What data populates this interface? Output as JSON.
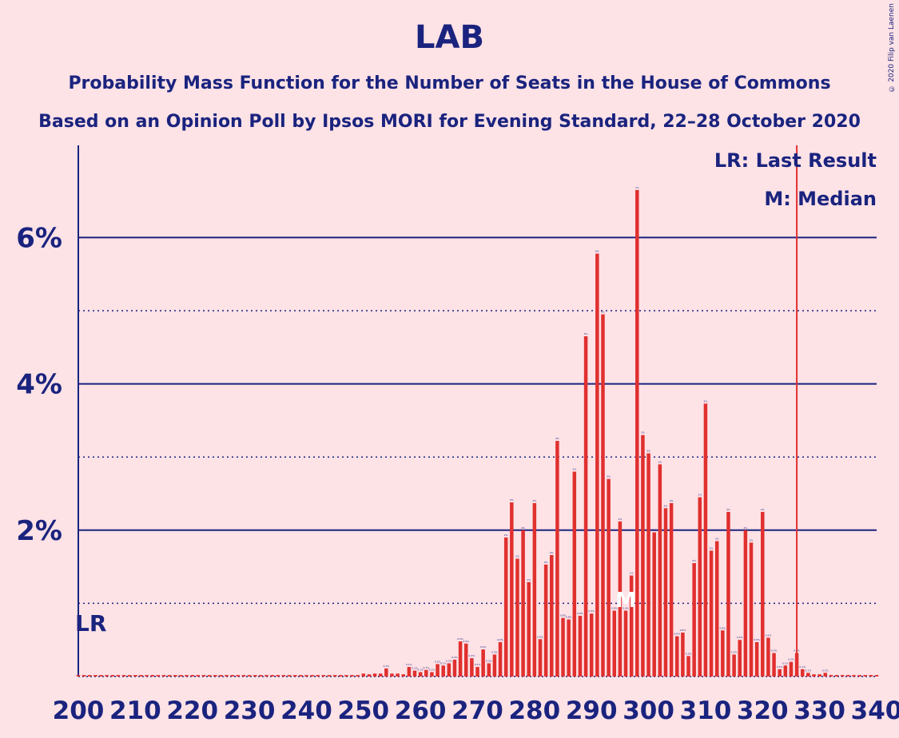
{
  "chart_data": {
    "type": "bar",
    "title": "LAB",
    "subtitle": "Probability Mass Function for the Number of Seats in the House of Commons",
    "subtitle2": "Based on an Opinion Poll by Ipsos MORI for Evening Standard, 22–28 October 2020",
    "copyright": "© 2020 Filip van Laenen",
    "xlim": [
      200,
      340
    ],
    "ylim": [
      0,
      7.2
    ],
    "xticks": [
      200,
      210,
      220,
      230,
      240,
      250,
      260,
      270,
      280,
      290,
      300,
      310,
      320,
      330,
      340
    ],
    "yticks_major": [
      2,
      4,
      6
    ],
    "yticks_minor": [
      1,
      3,
      5
    ],
    "ytick_labels": [
      "2%",
      "4%",
      "6%"
    ],
    "legend": [
      "LR: Last Result",
      "M: Median"
    ],
    "last_result": 326,
    "last_result_label": "LR",
    "median": 296,
    "median_label": "M",
    "first_seat": 200,
    "values": [
      0.02,
      0.02,
      0.02,
      0.02,
      0.02,
      0.02,
      0.02,
      0.02,
      0.02,
      0.02,
      0.02,
      0.02,
      0.02,
      0.02,
      0.02,
      0.02,
      0.02,
      0.02,
      0.02,
      0.02,
      0.02,
      0.02,
      0.02,
      0.02,
      0.02,
      0.02,
      0.02,
      0.02,
      0.02,
      0.02,
      0.02,
      0.02,
      0.02,
      0.02,
      0.02,
      0.02,
      0.02,
      0.02,
      0.02,
      0.02,
      0.02,
      0.02,
      0.02,
      0.02,
      0.02,
      0.02,
      0.02,
      0.02,
      0.02,
      0.02,
      0.04,
      0.03,
      0.04,
      0.04,
      0.11,
      0.04,
      0.04,
      0.03,
      0.13,
      0.08,
      0.06,
      0.09,
      0.06,
      0.17,
      0.15,
      0.18,
      0.23,
      0.48,
      0.45,
      0.25,
      0.13,
      0.37,
      0.18,
      0.3,
      0.47,
      1.9,
      2.38,
      1.61,
      2.0,
      1.29,
      2.37,
      0.51,
      1.53,
      1.66,
      3.22,
      0.8,
      0.78,
      2.8,
      0.83,
      4.65,
      0.86,
      5.78,
      4.95,
      2.7,
      0.9,
      2.12,
      0.9,
      1.38,
      6.65,
      3.3,
      3.05,
      1.97,
      2.9,
      2.3,
      2.37,
      0.55,
      0.6,
      0.28,
      1.55,
      2.45,
      3.73,
      1.72,
      1.85,
      0.63,
      2.25,
      0.3,
      0.5,
      2.0,
      1.83,
      0.47,
      2.25,
      0.53,
      0.32,
      0.1,
      0.15,
      0.2,
      0.32,
      0.1,
      0.05,
      0.03,
      0.03,
      0.05,
      0.02,
      0.02,
      0.02,
      0.02,
      0.02,
      0.02,
      0.02,
      0.02,
      0.02
    ],
    "colors": {
      "bar": "#e0302e",
      "axis": "#1a237e",
      "lr_line": "#e0302e",
      "background": "#fde2e6"
    }
  }
}
